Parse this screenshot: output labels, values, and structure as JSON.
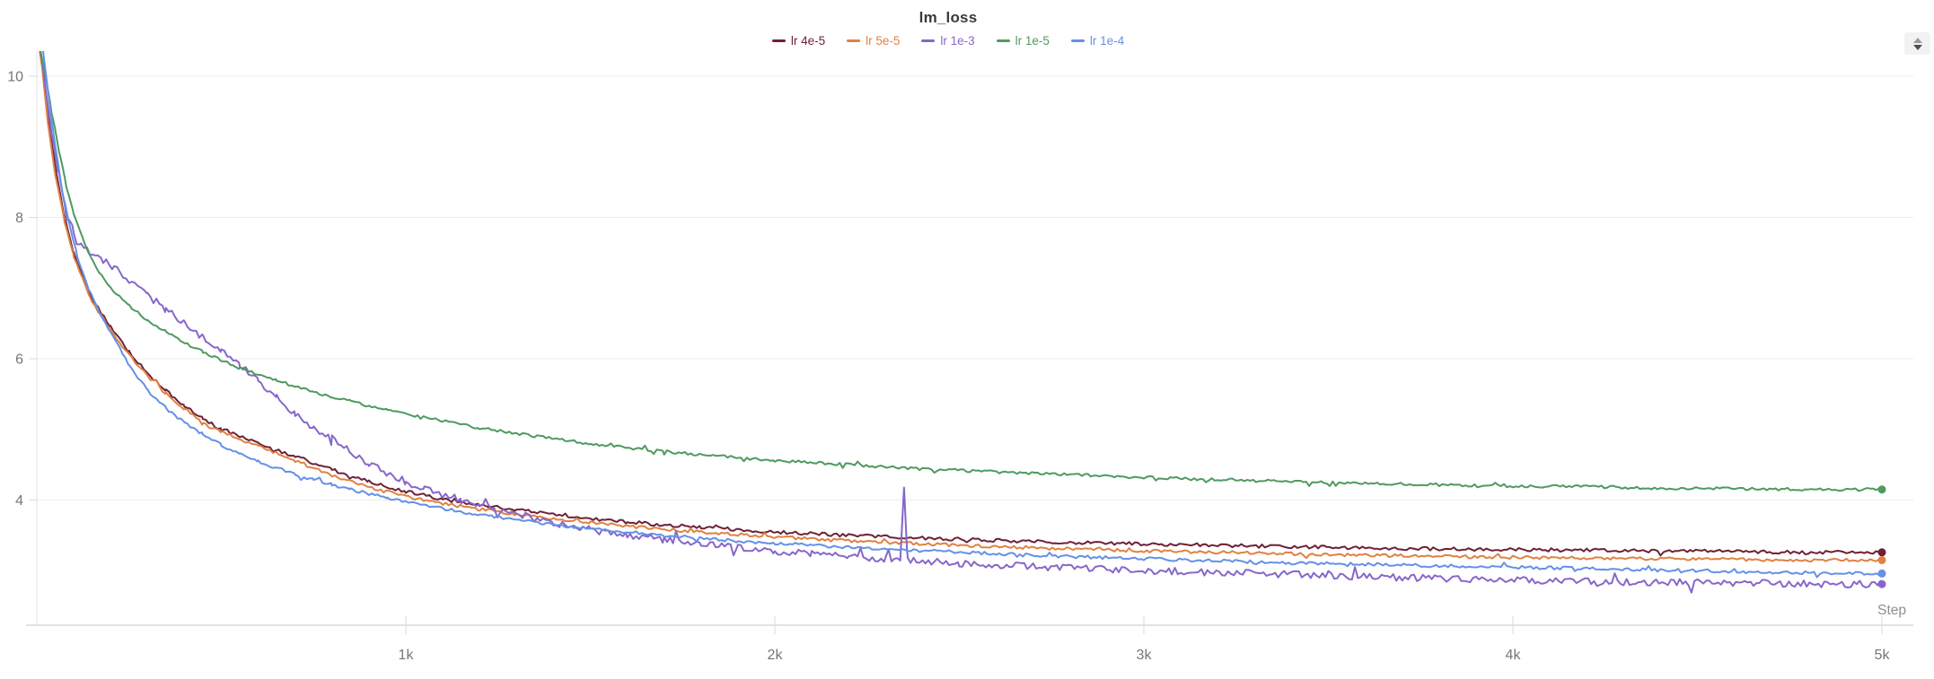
{
  "panel": {
    "title": "lm_loss",
    "expand_button_icon": "up-down-caret-icon"
  },
  "style_colors": {
    "background": "#ffffff",
    "grid": "#ececec",
    "axis_line": "#e2e2e2",
    "tick": "#d9d9d9",
    "tick_text": "#767676",
    "step_label_text": "#8f8f8f",
    "title_text": "#3a3a3a"
  },
  "chart_data": {
    "type": "line",
    "title": "lm_loss",
    "xlabel": "Step",
    "ylabel": "",
    "grid": true,
    "legend_position": "top-center",
    "xlim": [
      0,
      5085
    ],
    "ylim": [
      2.23,
      10.36
    ],
    "x_tick_labels": [
      "1k",
      "2k",
      "3k",
      "4k",
      "5k"
    ],
    "x_tick_values": [
      1000,
      2000,
      3000,
      4000,
      5000
    ],
    "y_tick_labels": [
      "10",
      "8",
      "6",
      "4"
    ],
    "y_tick_values": [
      10,
      8,
      6,
      4
    ],
    "series": [
      {
        "name": "lr 4e-5",
        "color": "#6e2136",
        "noise": 0.024,
        "final_value": 3.26,
        "points": [
          [
            0,
            10.7
          ],
          [
            15,
            10.2
          ],
          [
            30,
            9.45
          ],
          [
            50,
            8.7
          ],
          [
            75,
            8.0
          ],
          [
            100,
            7.5
          ],
          [
            150,
            6.85
          ],
          [
            200,
            6.45
          ],
          [
            250,
            6.1
          ],
          [
            300,
            5.8
          ],
          [
            350,
            5.55
          ],
          [
            400,
            5.33
          ],
          [
            450,
            5.15
          ],
          [
            500,
            5.0
          ],
          [
            550,
            4.9
          ],
          [
            600,
            4.8
          ],
          [
            700,
            4.62
          ],
          [
            800,
            4.43
          ],
          [
            900,
            4.26
          ],
          [
            1000,
            4.12
          ],
          [
            1100,
            4.01
          ],
          [
            1200,
            3.93
          ],
          [
            1300,
            3.86
          ],
          [
            1400,
            3.8
          ],
          [
            1500,
            3.74
          ],
          [
            1600,
            3.69
          ],
          [
            1700,
            3.65
          ],
          [
            1800,
            3.62
          ],
          [
            1900,
            3.58
          ],
          [
            2000,
            3.55
          ],
          [
            2200,
            3.5
          ],
          [
            2400,
            3.46
          ],
          [
            2600,
            3.43
          ],
          [
            2800,
            3.4
          ],
          [
            3000,
            3.38
          ],
          [
            3200,
            3.36
          ],
          [
            3400,
            3.34
          ],
          [
            3600,
            3.32
          ],
          [
            3800,
            3.31
          ],
          [
            4000,
            3.3
          ],
          [
            4200,
            3.29
          ],
          [
            4400,
            3.28
          ],
          [
            4600,
            3.27
          ],
          [
            4800,
            3.26
          ],
          [
            5000,
            3.26
          ]
        ]
      },
      {
        "name": "lr 5e-5",
        "color": "#df8243",
        "noise": 0.022,
        "final_value": 3.15,
        "points": [
          [
            0,
            10.6
          ],
          [
            15,
            10.1
          ],
          [
            30,
            9.35
          ],
          [
            50,
            8.6
          ],
          [
            75,
            7.95
          ],
          [
            100,
            7.45
          ],
          [
            150,
            6.8
          ],
          [
            200,
            6.4
          ],
          [
            250,
            6.05
          ],
          [
            300,
            5.76
          ],
          [
            350,
            5.51
          ],
          [
            400,
            5.29
          ],
          [
            450,
            5.11
          ],
          [
            500,
            4.97
          ],
          [
            550,
            4.86
          ],
          [
            600,
            4.76
          ],
          [
            700,
            4.56
          ],
          [
            800,
            4.34
          ],
          [
            900,
            4.18
          ],
          [
            1000,
            4.05
          ],
          [
            1100,
            3.95
          ],
          [
            1200,
            3.87
          ],
          [
            1300,
            3.8
          ],
          [
            1400,
            3.74
          ],
          [
            1500,
            3.68
          ],
          [
            1600,
            3.63
          ],
          [
            1700,
            3.59
          ],
          [
            1800,
            3.55
          ],
          [
            1900,
            3.51
          ],
          [
            2000,
            3.48
          ],
          [
            2200,
            3.42
          ],
          [
            2400,
            3.38
          ],
          [
            2600,
            3.34
          ],
          [
            2800,
            3.31
          ],
          [
            3000,
            3.28
          ],
          [
            3200,
            3.26
          ],
          [
            3400,
            3.24
          ],
          [
            3600,
            3.22
          ],
          [
            3800,
            3.2
          ],
          [
            4000,
            3.19
          ],
          [
            4200,
            3.18
          ],
          [
            4400,
            3.17
          ],
          [
            4600,
            3.16
          ],
          [
            4800,
            3.15
          ],
          [
            5000,
            3.15
          ]
        ]
      },
      {
        "name": "lr 1e-3",
        "color": "#8667c9",
        "noise": 0.05,
        "final_value": 2.81,
        "points": [
          [
            0,
            10.7
          ],
          [
            20,
            10.0
          ],
          [
            40,
            9.2
          ],
          [
            60,
            8.6
          ],
          [
            80,
            8.1
          ],
          [
            100,
            7.8
          ],
          [
            120,
            7.6
          ],
          [
            150,
            7.45
          ],
          [
            180,
            7.38
          ],
          [
            210,
            7.3
          ],
          [
            250,
            7.12
          ],
          [
            300,
            6.9
          ],
          [
            350,
            6.7
          ],
          [
            400,
            6.5
          ],
          [
            450,
            6.3
          ],
          [
            500,
            6.1
          ],
          [
            550,
            5.9
          ],
          [
            600,
            5.68
          ],
          [
            650,
            5.45
          ],
          [
            700,
            5.2
          ],
          [
            750,
            5.02
          ],
          [
            800,
            4.88
          ],
          [
            850,
            4.7
          ],
          [
            900,
            4.52
          ],
          [
            950,
            4.38
          ],
          [
            1000,
            4.26
          ],
          [
            1050,
            4.16
          ],
          [
            1100,
            4.08
          ],
          [
            1150,
            4.0
          ],
          [
            1200,
            3.93
          ],
          [
            1300,
            3.8
          ],
          [
            1400,
            3.68
          ],
          [
            1500,
            3.58
          ],
          [
            1600,
            3.5
          ],
          [
            1700,
            3.44
          ],
          [
            1800,
            3.38
          ],
          [
            1900,
            3.33
          ],
          [
            2000,
            3.28
          ],
          [
            2100,
            3.24
          ],
          [
            2200,
            3.2
          ],
          [
            2300,
            3.17
          ],
          [
            2340,
            3.15
          ],
          [
            2350,
            4.15
          ],
          [
            2360,
            3.15
          ],
          [
            2500,
            3.1
          ],
          [
            2700,
            3.06
          ],
          [
            2900,
            3.02
          ],
          [
            3100,
            2.99
          ],
          [
            3300,
            2.96
          ],
          [
            3500,
            2.93
          ],
          [
            3700,
            2.9
          ],
          [
            3900,
            2.88
          ],
          [
            4100,
            2.86
          ],
          [
            4300,
            2.84
          ],
          [
            4500,
            2.83
          ],
          [
            4700,
            2.82
          ],
          [
            4900,
            2.81
          ],
          [
            5000,
            2.81
          ]
        ]
      },
      {
        "name": "lr 1e-5",
        "color": "#4f9a5e",
        "noise": 0.02,
        "final_value": 4.15,
        "points": [
          [
            0,
            10.6
          ],
          [
            20,
            10.1
          ],
          [
            40,
            9.5
          ],
          [
            60,
            8.95
          ],
          [
            80,
            8.45
          ],
          [
            100,
            8.05
          ],
          [
            130,
            7.62
          ],
          [
            160,
            7.3
          ],
          [
            200,
            7.0
          ],
          [
            250,
            6.75
          ],
          [
            300,
            6.55
          ],
          [
            350,
            6.38
          ],
          [
            400,
            6.23
          ],
          [
            450,
            6.1
          ],
          [
            500,
            5.98
          ],
          [
            550,
            5.87
          ],
          [
            600,
            5.78
          ],
          [
            650,
            5.69
          ],
          [
            700,
            5.61
          ],
          [
            750,
            5.53
          ],
          [
            800,
            5.46
          ],
          [
            850,
            5.4
          ],
          [
            900,
            5.33
          ],
          [
            950,
            5.27
          ],
          [
            1000,
            5.22
          ],
          [
            1100,
            5.12
          ],
          [
            1200,
            5.02
          ],
          [
            1300,
            4.94
          ],
          [
            1400,
            4.87
          ],
          [
            1500,
            4.8
          ],
          [
            1600,
            4.74
          ],
          [
            1700,
            4.69
          ],
          [
            1800,
            4.64
          ],
          [
            1900,
            4.6
          ],
          [
            2000,
            4.56
          ],
          [
            2200,
            4.5
          ],
          [
            2400,
            4.44
          ],
          [
            2600,
            4.4
          ],
          [
            2800,
            4.36
          ],
          [
            3000,
            4.32
          ],
          [
            3200,
            4.29
          ],
          [
            3400,
            4.26
          ],
          [
            3600,
            4.24
          ],
          [
            3800,
            4.22
          ],
          [
            4000,
            4.2
          ],
          [
            4200,
            4.19
          ],
          [
            4400,
            4.17
          ],
          [
            4600,
            4.16
          ],
          [
            4800,
            4.15
          ],
          [
            5000,
            4.15
          ]
        ]
      },
      {
        "name": "lr 1e-4",
        "color": "#6490e8",
        "noise": 0.022,
        "final_value": 2.96,
        "points": [
          [
            0,
            10.8
          ],
          [
            15,
            10.45
          ],
          [
            30,
            9.8
          ],
          [
            50,
            9.0
          ],
          [
            70,
            8.35
          ],
          [
            90,
            7.85
          ],
          [
            110,
            7.45
          ],
          [
            140,
            7.0
          ],
          [
            170,
            6.65
          ],
          [
            200,
            6.38
          ],
          [
            250,
            5.92
          ],
          [
            300,
            5.55
          ],
          [
            350,
            5.3
          ],
          [
            400,
            5.1
          ],
          [
            450,
            4.93
          ],
          [
            500,
            4.78
          ],
          [
            550,
            4.65
          ],
          [
            600,
            4.55
          ],
          [
            650,
            4.45
          ],
          [
            700,
            4.37
          ],
          [
            750,
            4.29
          ],
          [
            800,
            4.22
          ],
          [
            850,
            4.15
          ],
          [
            900,
            4.09
          ],
          [
            950,
            4.03
          ],
          [
            1000,
            3.98
          ],
          [
            1100,
            3.88
          ],
          [
            1200,
            3.79
          ],
          [
            1300,
            3.72
          ],
          [
            1400,
            3.65
          ],
          [
            1500,
            3.6
          ],
          [
            1600,
            3.55
          ],
          [
            1700,
            3.5
          ],
          [
            1800,
            3.46
          ],
          [
            1900,
            3.42
          ],
          [
            2000,
            3.39
          ],
          [
            2200,
            3.33
          ],
          [
            2400,
            3.28
          ],
          [
            2600,
            3.24
          ],
          [
            2800,
            3.2
          ],
          [
            3000,
            3.17
          ],
          [
            3200,
            3.14
          ],
          [
            3400,
            3.11
          ],
          [
            3600,
            3.09
          ],
          [
            3800,
            3.07
          ],
          [
            4000,
            3.05
          ],
          [
            4200,
            3.03
          ],
          [
            4400,
            3.01
          ],
          [
            4600,
            2.99
          ],
          [
            4800,
            2.97
          ],
          [
            5000,
            2.96
          ]
        ]
      }
    ]
  }
}
